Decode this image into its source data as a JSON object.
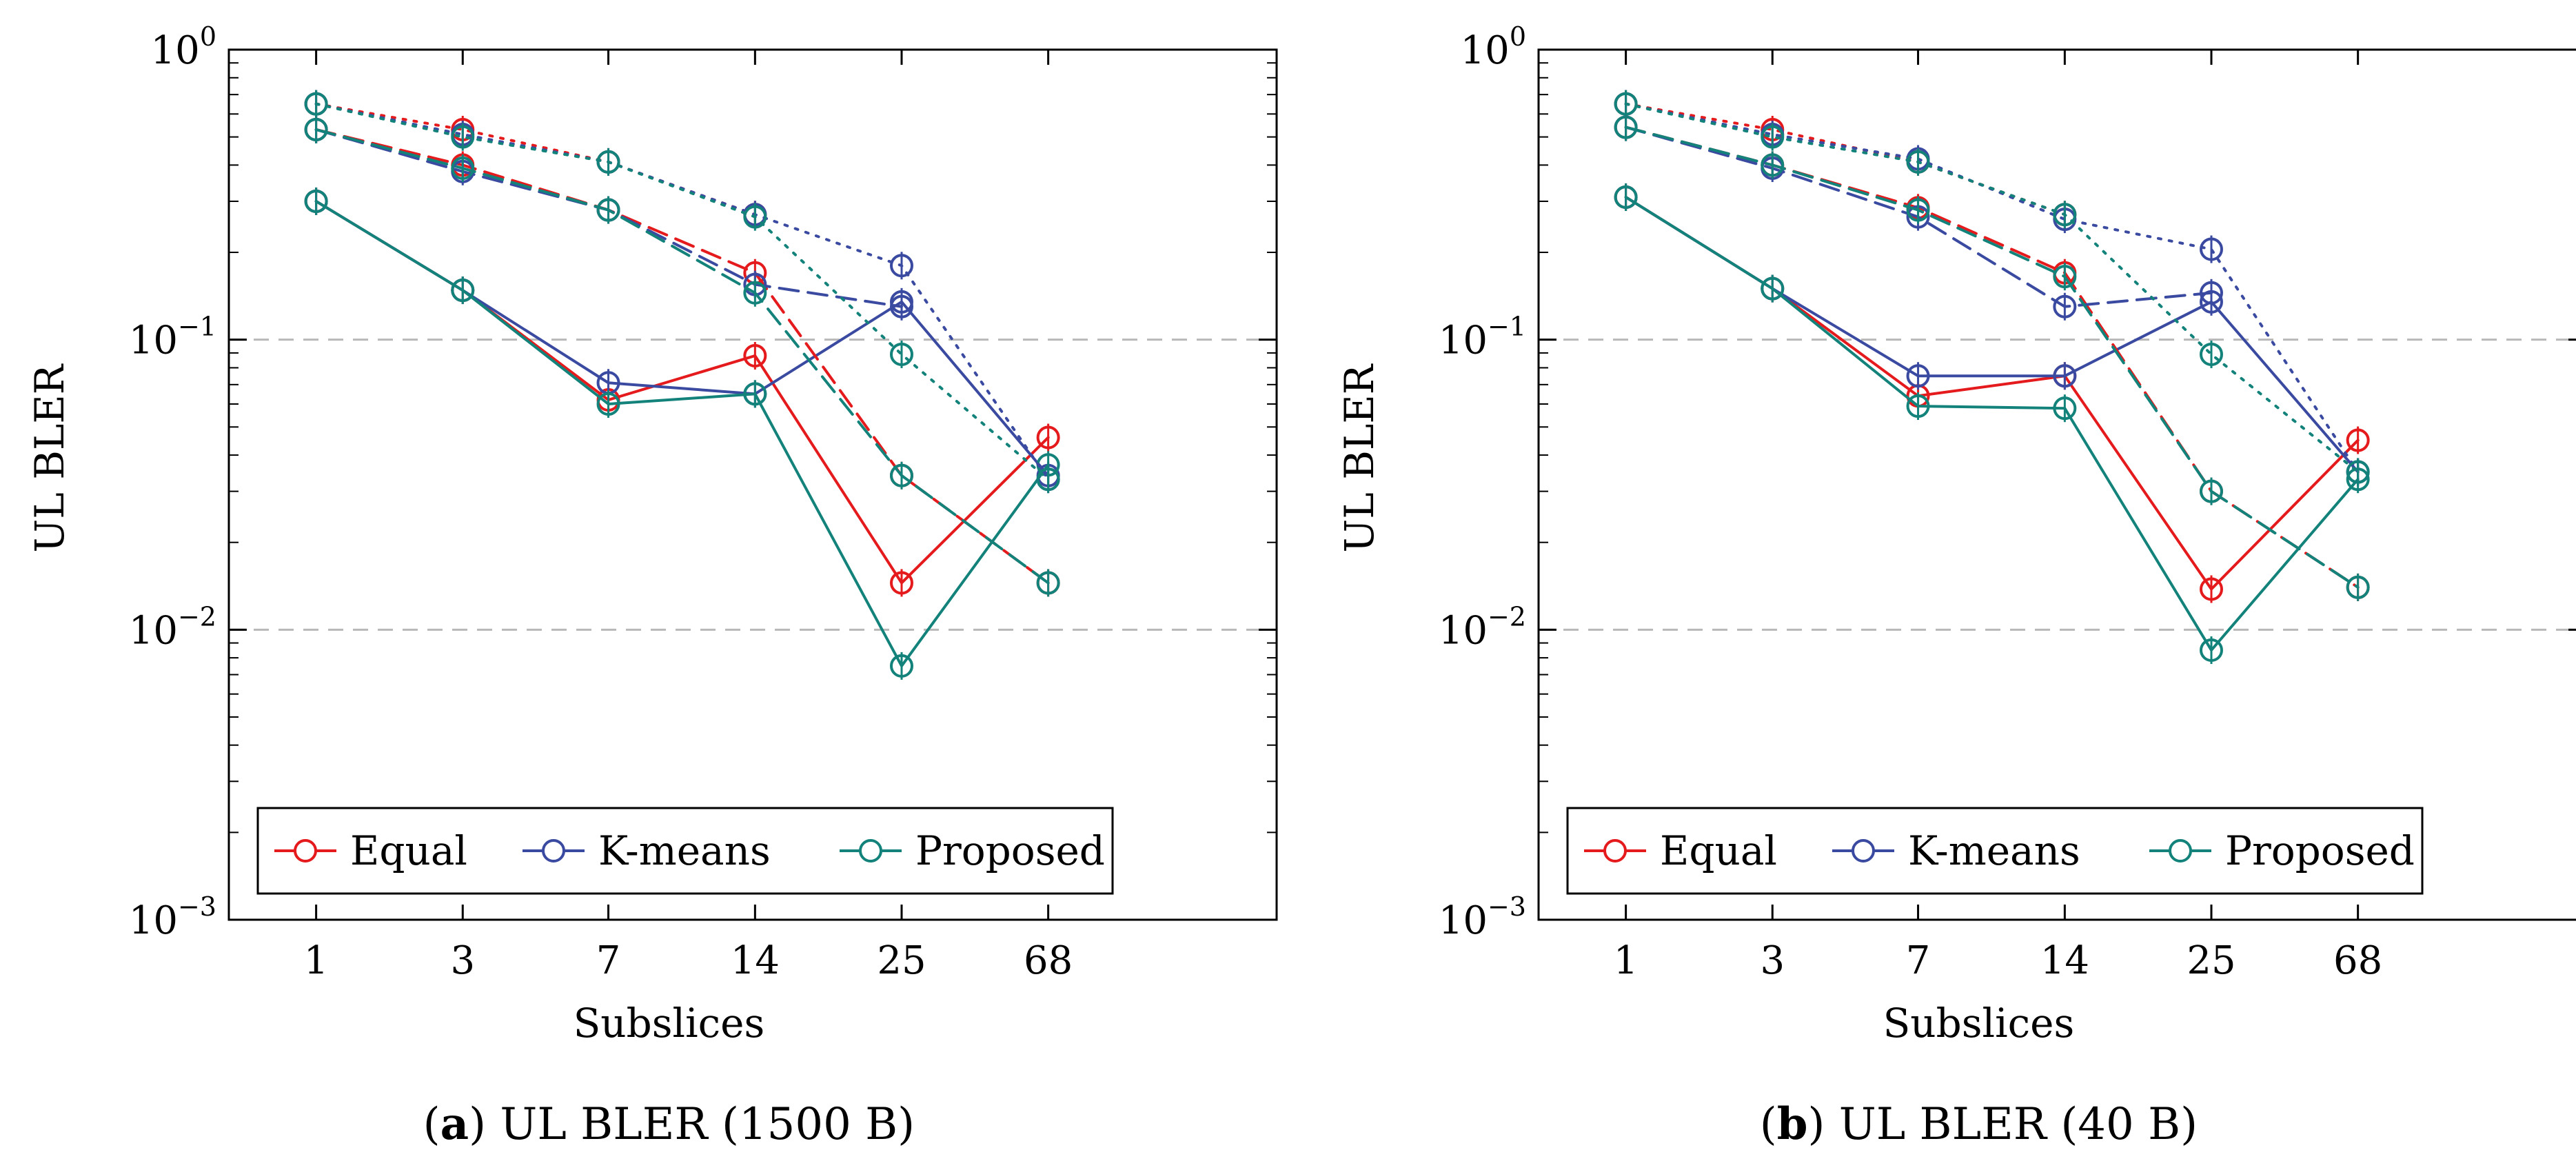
{
  "colors": {
    "Equal": "#e41a1c",
    "K-means": "#3a4aa0",
    "Proposed": "#12827a",
    "grid": "#b8b8b8",
    "axis": "#000000"
  },
  "chart_data": [
    {
      "type": "line",
      "caption_label": "a",
      "caption_text": ") UL BLER (1500 B)",
      "caption_paren": "(",
      "xlabel": "Subslices",
      "ylabel": "UL BLER",
      "categories": [
        "1",
        "3",
        "7",
        "14",
        "25",
        "68"
      ],
      "yscale": "log",
      "ylim": [
        0.001,
        1
      ],
      "ytick_base": "10",
      "ytick_exponents": [
        "0",
        "−1",
        "−2",
        "−3"
      ],
      "grid": "dashed horizontal at 10^-1 and 10^-2",
      "legend": {
        "position": "bottom-left",
        "entries": [
          "Equal",
          "K-means",
          "Proposed"
        ]
      },
      "series": [
        {
          "name": "Equal",
          "style": "solid",
          "values": [
            0.3,
            0.148,
            0.062,
            0.088,
            0.0145,
            0.046
          ]
        },
        {
          "name": "K-means",
          "style": "solid",
          "values": [
            0.3,
            0.148,
            0.071,
            0.065,
            0.135,
            0.034
          ]
        },
        {
          "name": "Proposed",
          "style": "solid",
          "values": [
            0.3,
            0.148,
            0.06,
            0.065,
            0.0075,
            0.037
          ]
        },
        {
          "name": "Equal",
          "style": "dashed",
          "values": [
            0.53,
            0.4,
            0.28,
            0.17,
            0.034,
            0.0145
          ]
        },
        {
          "name": "K-means",
          "style": "dashed",
          "values": [
            0.53,
            0.38,
            0.28,
            0.155,
            0.13,
            null
          ]
        },
        {
          "name": "Proposed",
          "style": "dashed",
          "values": [
            0.53,
            0.39,
            0.28,
            0.145,
            0.034,
            0.0145
          ]
        },
        {
          "name": "Equal",
          "style": "dotted",
          "values": [
            0.65,
            0.53,
            0.41,
            0.27,
            null,
            null
          ]
        },
        {
          "name": "K-means",
          "style": "dotted",
          "values": [
            0.65,
            0.51,
            0.41,
            0.27,
            0.18,
            0.033
          ]
        },
        {
          "name": "Proposed",
          "style": "dotted",
          "values": [
            0.65,
            0.5,
            0.41,
            0.265,
            0.089,
            0.033
          ]
        }
      ]
    },
    {
      "type": "line",
      "caption_label": "b",
      "caption_text": ") UL BLER (40 B)",
      "caption_paren": "(",
      "xlabel": "Subslices",
      "ylabel": "UL BLER",
      "categories": [
        "1",
        "3",
        "7",
        "14",
        "25",
        "68"
      ],
      "yscale": "log",
      "ylim": [
        0.001,
        1
      ],
      "ytick_base": "10",
      "ytick_exponents": [
        "0",
        "−1",
        "−2",
        "−3"
      ],
      "grid": "dashed horizontal at 10^-1 and 10^-2",
      "legend": {
        "position": "bottom-left",
        "entries": [
          "Equal",
          "K-means",
          "Proposed"
        ]
      },
      "series": [
        {
          "name": "Equal",
          "style": "solid",
          "values": [
            0.31,
            0.15,
            0.064,
            0.075,
            0.0138,
            0.045
          ]
        },
        {
          "name": "K-means",
          "style": "solid",
          "values": [
            0.31,
            0.15,
            0.075,
            0.075,
            0.135,
            0.035
          ]
        },
        {
          "name": "Proposed",
          "style": "solid",
          "values": [
            0.31,
            0.15,
            0.059,
            0.058,
            0.0085,
            0.033
          ]
        },
        {
          "name": "Equal",
          "style": "dashed",
          "values": [
            0.54,
            0.4,
            0.285,
            0.17,
            0.03,
            0.014
          ]
        },
        {
          "name": "K-means",
          "style": "dashed",
          "values": [
            0.54,
            0.39,
            0.265,
            0.13,
            0.145,
            null
          ]
        },
        {
          "name": "Proposed",
          "style": "dashed",
          "values": [
            0.54,
            0.4,
            0.28,
            0.165,
            0.03,
            0.014
          ]
        },
        {
          "name": "Equal",
          "style": "dotted",
          "values": [
            0.65,
            0.53,
            0.41,
            0.27,
            null,
            null
          ]
        },
        {
          "name": "K-means",
          "style": "dotted",
          "values": [
            0.65,
            0.51,
            0.42,
            0.26,
            0.205,
            0.035
          ]
        },
        {
          "name": "Proposed",
          "style": "dotted",
          "values": [
            0.65,
            0.5,
            0.41,
            0.27,
            0.089,
            0.035
          ]
        }
      ]
    }
  ]
}
